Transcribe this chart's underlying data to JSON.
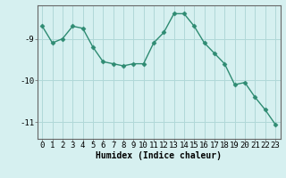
{
  "x": [
    0,
    1,
    2,
    3,
    4,
    5,
    6,
    7,
    8,
    9,
    10,
    11,
    12,
    13,
    14,
    15,
    16,
    17,
    18,
    19,
    20,
    21,
    22,
    23
  ],
  "y": [
    -8.7,
    -9.1,
    -9.0,
    -8.7,
    -8.75,
    -9.2,
    -9.55,
    -9.6,
    -9.65,
    -9.6,
    -9.6,
    -9.1,
    -8.85,
    -8.4,
    -8.4,
    -8.7,
    -9.1,
    -9.35,
    -9.6,
    -10.1,
    -10.05,
    -10.4,
    -10.7,
    -11.05
  ],
  "line_color": "#2e8b72",
  "marker_color": "#2e8b72",
  "bg_color": "#d6f0f0",
  "grid_color": "#b0d8d8",
  "xlabel": "Humidex (Indice chaleur)",
  "yticks": [
    -9,
    -10,
    -11
  ],
  "ylim": [
    -11.4,
    -8.2
  ],
  "xlim": [
    -0.5,
    23.5
  ],
  "xlabel_fontsize": 7,
  "tick_fontsize": 6.5
}
